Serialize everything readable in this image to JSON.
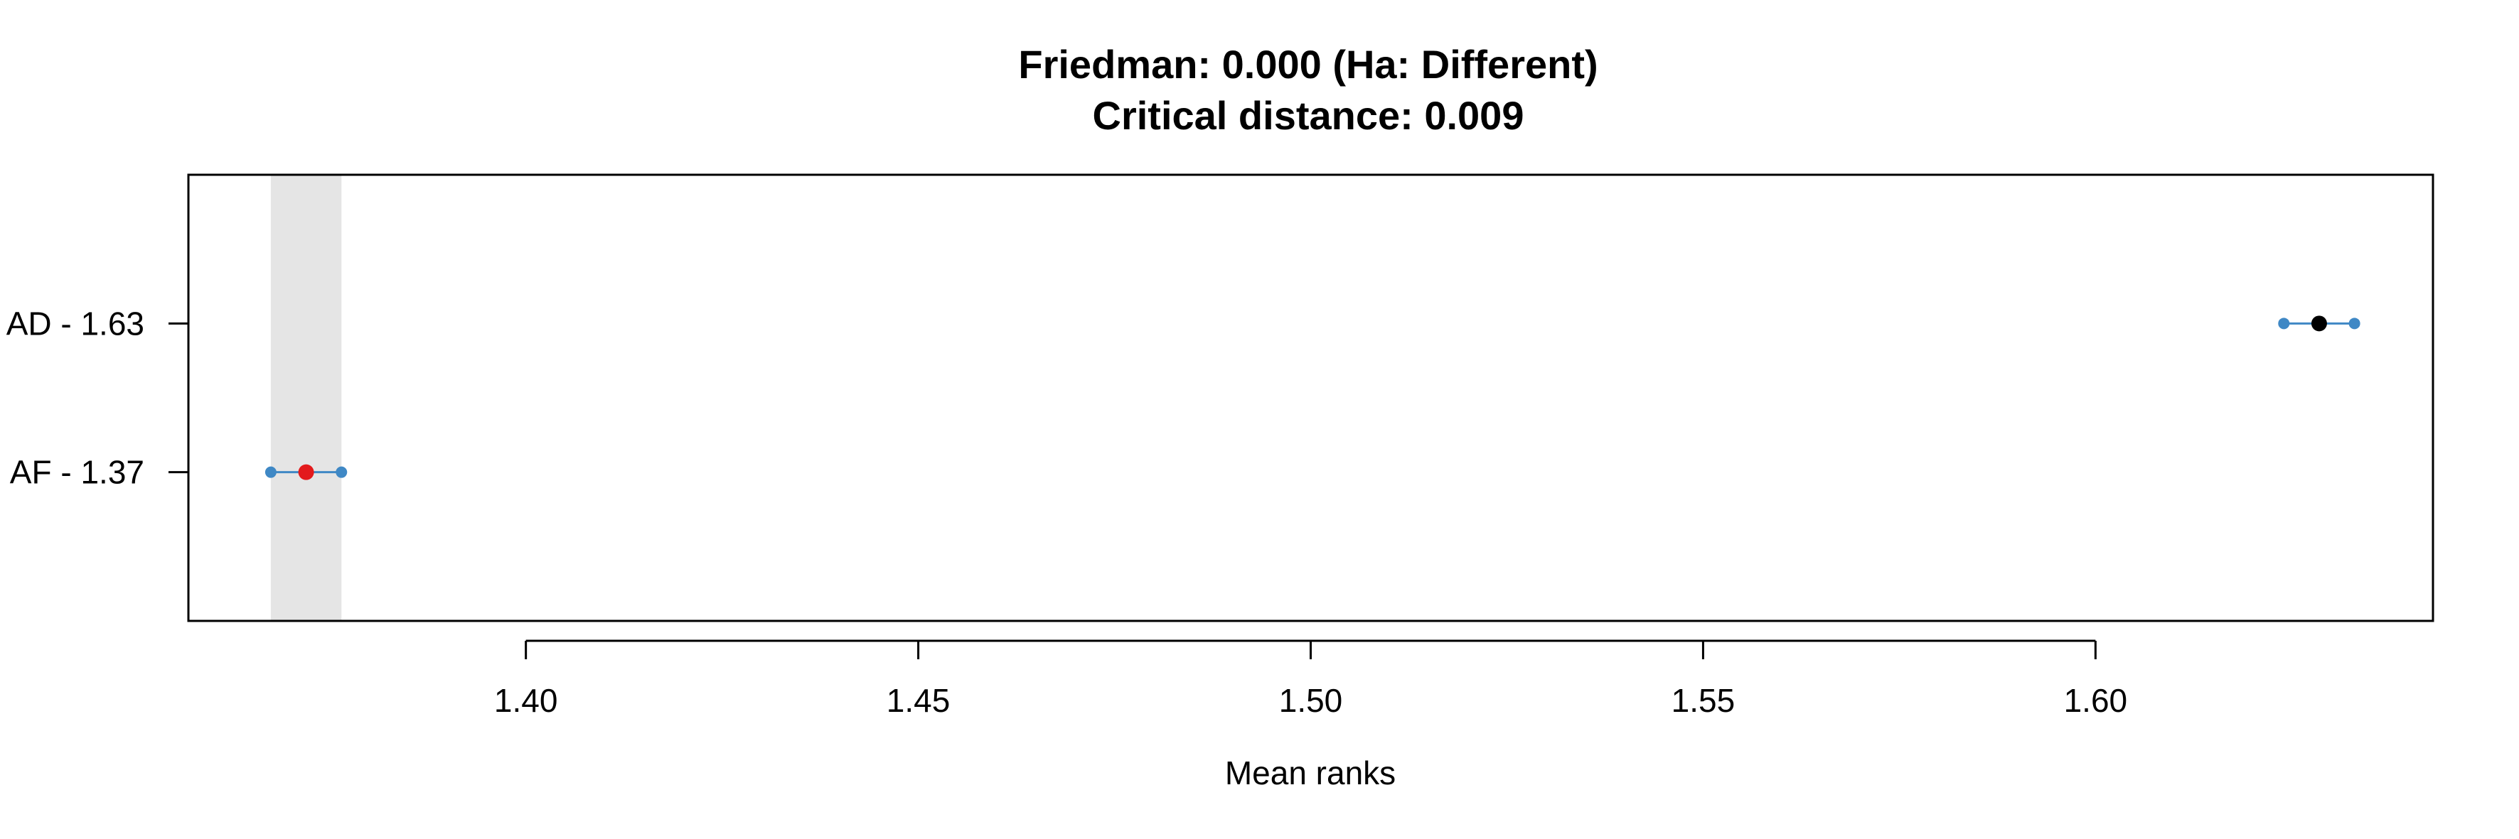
{
  "chart_data": {
    "type": "scatter",
    "title": "Friedman: 0.000 (Ha: Different)",
    "subtitle": "Critical distance: 0.009",
    "xlabel": "Mean ranks",
    "ylabel": "",
    "xlim": [
      1.357,
      1.643
    ],
    "x_ticks": [
      1.4,
      1.45,
      1.5,
      1.55,
      1.6
    ],
    "x_tick_labels": [
      "1.40",
      "1.45",
      "1.50",
      "1.55",
      "1.60"
    ],
    "critical_distance": 0.009,
    "grid": false,
    "legend": "none",
    "highlight_band": {
      "from": 1.3675,
      "to": 1.3765,
      "color": "#e5e5e5"
    },
    "series": [
      {
        "label": "AD - 1.63",
        "mean_rank": 1.6285,
        "low": 1.624,
        "high": 1.633,
        "point_color": "#000000",
        "whisker_color": "#3f88c5"
      },
      {
        "label": "AF - 1.37",
        "mean_rank": 1.372,
        "low": 1.3675,
        "high": 1.3765,
        "point_color": "#e31a1c",
        "whisker_color": "#3f88c5"
      }
    ]
  }
}
